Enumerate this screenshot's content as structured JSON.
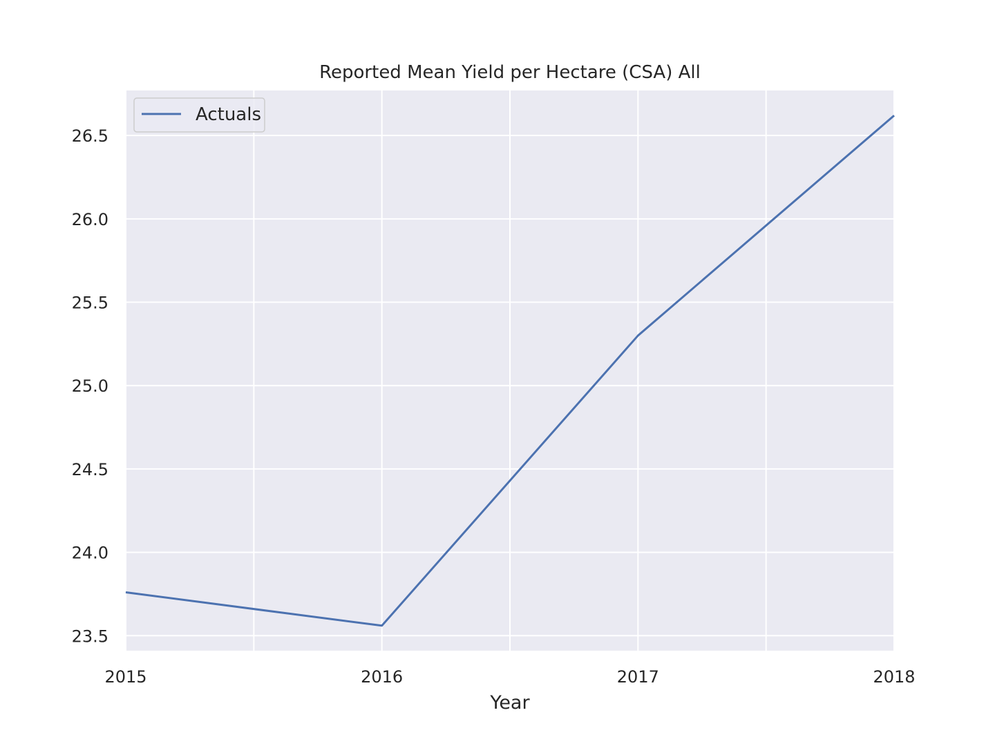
{
  "chart_data": {
    "type": "line",
    "title": "Reported Mean Yield per Hectare (CSA) All",
    "xlabel": "Year",
    "ylabel": "",
    "x": [
      2015,
      2016,
      2017,
      2018
    ],
    "series": [
      {
        "name": "Actuals",
        "values": [
          23.76,
          23.56,
          25.3,
          26.62
        ],
        "color": "#4c72b0"
      }
    ],
    "xlim": [
      2015,
      2018
    ],
    "ylim": [
      23.41,
      26.77
    ],
    "x_ticks": [
      2015,
      2016,
      2017,
      2018
    ],
    "x_tick_labels": [
      "2015",
      "2016",
      "2017",
      "2018"
    ],
    "x_minor_grid": [
      2015.5,
      2016.5,
      2017.5
    ],
    "y_ticks": [
      23.5,
      24.0,
      24.5,
      25.0,
      25.5,
      26.0,
      26.5
    ],
    "y_tick_labels": [
      "23.5",
      "24.0",
      "24.5",
      "25.0",
      "25.5",
      "26.0",
      "26.5"
    ],
    "grid": true,
    "legend_position": "top-left",
    "colors": {
      "plot_background": "#eaeaf2",
      "grid": "#ffffff",
      "text": "#262626",
      "legend_border": "#cccccc"
    }
  }
}
